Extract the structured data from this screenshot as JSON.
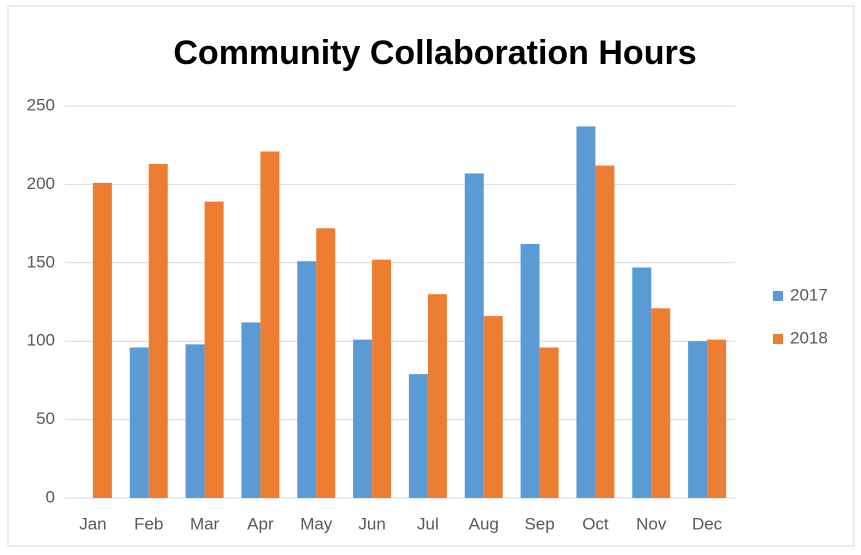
{
  "chart_data": {
    "type": "bar",
    "title": "Community Collaboration Hours",
    "categories": [
      "Jan",
      "Feb",
      "Mar",
      "Apr",
      "May",
      "Jun",
      "Jul",
      "Aug",
      "Sep",
      "Oct",
      "Nov",
      "Dec"
    ],
    "series": [
      {
        "name": "2017",
        "color": "#5b9bd5",
        "values": [
          null,
          96,
          98,
          112,
          151,
          101,
          79,
          207,
          162,
          237,
          147,
          100
        ]
      },
      {
        "name": "2018",
        "color": "#ed7d31",
        "values": [
          201,
          213,
          189,
          221,
          172,
          152,
          130,
          116,
          96,
          212,
          121,
          101
        ]
      }
    ],
    "ylim": [
      0,
      250
    ],
    "yticks": [
      0,
      50,
      100,
      150,
      200,
      250
    ],
    "grid": true,
    "legend": "right"
  }
}
